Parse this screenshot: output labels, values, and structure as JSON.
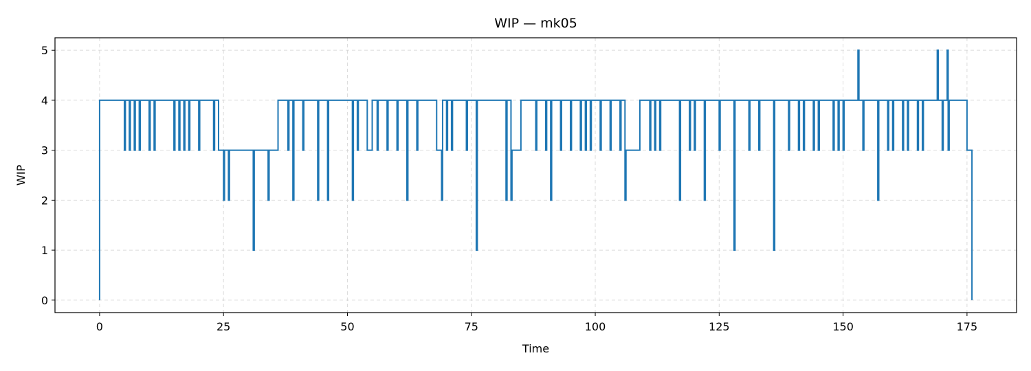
{
  "chart_data": {
    "type": "line",
    "step": "post",
    "title": "WIP — mk05",
    "xlabel": "Time",
    "ylabel": "WIP",
    "xlim": [
      -9,
      185
    ],
    "ylim": [
      -0.25,
      5.25
    ],
    "xticks": [
      0,
      25,
      50,
      75,
      100,
      125,
      150,
      175
    ],
    "yticks": [
      0,
      1,
      2,
      3,
      4,
      5
    ],
    "grid": true,
    "colors": {
      "series": "#1f77b4"
    },
    "series": [
      {
        "points": [
          [
            0,
            0
          ],
          [
            0,
            4
          ],
          [
            5,
            3
          ],
          [
            5.2,
            4
          ],
          [
            6,
            3
          ],
          [
            6.2,
            4
          ],
          [
            7,
            3
          ],
          [
            7.2,
            4
          ],
          [
            8,
            3
          ],
          [
            8.2,
            4
          ],
          [
            10,
            3
          ],
          [
            10.2,
            4
          ],
          [
            11,
            3
          ],
          [
            11.2,
            4
          ],
          [
            15,
            3
          ],
          [
            15.2,
            4
          ],
          [
            16,
            3
          ],
          [
            16.2,
            4
          ],
          [
            17,
            3
          ],
          [
            17.2,
            4
          ],
          [
            18,
            3
          ],
          [
            18.2,
            4
          ],
          [
            20,
            3
          ],
          [
            20.2,
            4
          ],
          [
            23,
            3
          ],
          [
            23.2,
            4
          ],
          [
            24,
            3
          ],
          [
            25,
            2
          ],
          [
            25.2,
            3
          ],
          [
            26,
            2
          ],
          [
            26.2,
            3
          ],
          [
            31,
            1
          ],
          [
            31.2,
            3
          ],
          [
            34,
            2
          ],
          [
            34.2,
            3
          ],
          [
            36,
            4
          ],
          [
            38,
            3
          ],
          [
            38.2,
            4
          ],
          [
            39,
            2
          ],
          [
            39.2,
            4
          ],
          [
            41,
            3
          ],
          [
            41.2,
            4
          ],
          [
            44,
            2
          ],
          [
            44.2,
            4
          ],
          [
            46,
            2
          ],
          [
            46.2,
            4
          ],
          [
            51,
            2
          ],
          [
            51.2,
            4
          ],
          [
            52,
            3
          ],
          [
            52.2,
            4
          ],
          [
            54,
            3
          ],
          [
            55,
            4
          ],
          [
            56,
            3
          ],
          [
            56.2,
            4
          ],
          [
            58,
            3
          ],
          [
            58.2,
            4
          ],
          [
            60,
            3
          ],
          [
            60.2,
            4
          ],
          [
            62,
            2
          ],
          [
            62.2,
            4
          ],
          [
            64,
            3
          ],
          [
            64.2,
            4
          ],
          [
            68,
            3
          ],
          [
            69,
            2
          ],
          [
            69.2,
            4
          ],
          [
            70,
            3
          ],
          [
            70.2,
            4
          ],
          [
            71,
            3
          ],
          [
            71.2,
            4
          ],
          [
            74,
            3
          ],
          [
            74.2,
            4
          ],
          [
            76,
            1
          ],
          [
            76.2,
            4
          ],
          [
            82,
            2
          ],
          [
            82.2,
            4
          ],
          [
            83,
            2
          ],
          [
            83.2,
            3
          ],
          [
            85,
            4
          ],
          [
            88,
            3
          ],
          [
            88.2,
            4
          ],
          [
            90,
            3
          ],
          [
            90.2,
            4
          ],
          [
            91,
            2
          ],
          [
            91.2,
            4
          ],
          [
            93,
            3
          ],
          [
            93.2,
            4
          ],
          [
            95,
            3
          ],
          [
            95.2,
            4
          ],
          [
            97,
            3
          ],
          [
            97.2,
            4
          ],
          [
            98,
            3
          ],
          [
            98.2,
            4
          ],
          [
            99,
            3
          ],
          [
            99.2,
            4
          ],
          [
            101,
            3
          ],
          [
            101.2,
            4
          ],
          [
            103,
            3
          ],
          [
            103.2,
            4
          ],
          [
            105,
            3
          ],
          [
            105.2,
            4
          ],
          [
            106,
            2
          ],
          [
            106.2,
            3
          ],
          [
            109,
            4
          ],
          [
            111,
            3
          ],
          [
            111.2,
            4
          ],
          [
            112,
            3
          ],
          [
            112.2,
            4
          ],
          [
            113,
            3
          ],
          [
            113.2,
            4
          ],
          [
            117,
            2
          ],
          [
            117.2,
            4
          ],
          [
            119,
            3
          ],
          [
            119.2,
            4
          ],
          [
            120,
            3
          ],
          [
            120.2,
            4
          ],
          [
            122,
            2
          ],
          [
            122.2,
            4
          ],
          [
            125,
            3
          ],
          [
            125.2,
            4
          ],
          [
            128,
            1
          ],
          [
            128.2,
            4
          ],
          [
            131,
            3
          ],
          [
            131.2,
            4
          ],
          [
            133,
            3
          ],
          [
            133.2,
            4
          ],
          [
            136,
            1
          ],
          [
            136.2,
            4
          ],
          [
            139,
            3
          ],
          [
            139.2,
            4
          ],
          [
            141,
            3
          ],
          [
            141.2,
            4
          ],
          [
            142,
            3
          ],
          [
            142.2,
            4
          ],
          [
            144,
            3
          ],
          [
            144.2,
            4
          ],
          [
            145,
            3
          ],
          [
            145.2,
            4
          ],
          [
            148,
            3
          ],
          [
            148.2,
            4
          ],
          [
            149,
            3
          ],
          [
            149.2,
            4
          ],
          [
            150,
            3
          ],
          [
            150.2,
            4
          ],
          [
            153,
            5
          ],
          [
            153.2,
            4
          ],
          [
            154,
            3
          ],
          [
            154.2,
            4
          ],
          [
            157,
            2
          ],
          [
            157.2,
            4
          ],
          [
            159,
            3
          ],
          [
            159.2,
            4
          ],
          [
            160,
            3
          ],
          [
            160.2,
            4
          ],
          [
            162,
            3
          ],
          [
            162.2,
            4
          ],
          [
            163,
            3
          ],
          [
            163.2,
            4
          ],
          [
            165,
            3
          ],
          [
            165.2,
            4
          ],
          [
            166,
            3
          ],
          [
            166.2,
            4
          ],
          [
            169,
            5
          ],
          [
            169.2,
            4
          ],
          [
            170,
            3
          ],
          [
            170.2,
            4
          ],
          [
            171,
            5
          ],
          [
            171.2,
            3
          ],
          [
            171.4,
            4
          ],
          [
            175,
            3
          ],
          [
            176,
            0
          ]
        ]
      }
    ]
  }
}
